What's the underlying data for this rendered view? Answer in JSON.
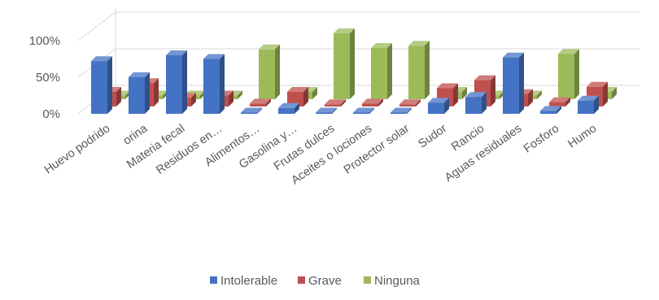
{
  "chart_data": {
    "type": "bar",
    "title": "",
    "xlabel": "",
    "ylabel": "",
    "ylim": [
      0,
      1
    ],
    "yticks": [
      "0%",
      "50%",
      "100%"
    ],
    "categories": [
      "Huevo podrido",
      "orina",
      "Materia fecal",
      "Residuos en…",
      "Alimentos…",
      "Gasolina y…",
      "Frutas dulces",
      "Aceites o lociones",
      "Protector solar",
      "Sudor",
      "Rancio",
      "Aguas residuales",
      "Fosforo",
      "Humo"
    ],
    "series": [
      {
        "name": "Intolerable",
        "color": "#4472C4",
        "values": [
          0.72,
          0.5,
          0.8,
          0.75,
          0.01,
          0.08,
          0.0,
          0.01,
          0.01,
          0.15,
          0.23,
          0.77,
          0.04,
          0.18
        ]
      },
      {
        "name": "Grave",
        "color": "#C0504D",
        "values": [
          0.2,
          0.32,
          0.12,
          0.15,
          0.04,
          0.2,
          0.03,
          0.04,
          0.03,
          0.25,
          0.36,
          0.17,
          0.06,
          0.27
        ]
      },
      {
        "name": "Ninguna",
        "color": "#9BBB59",
        "values": [
          0.05,
          0.05,
          0.05,
          0.05,
          0.68,
          0.1,
          0.9,
          0.7,
          0.73,
          0.1,
          0.05,
          0.05,
          0.62,
          0.1
        ]
      }
    ],
    "grid": true,
    "legend_position": "bottom"
  }
}
